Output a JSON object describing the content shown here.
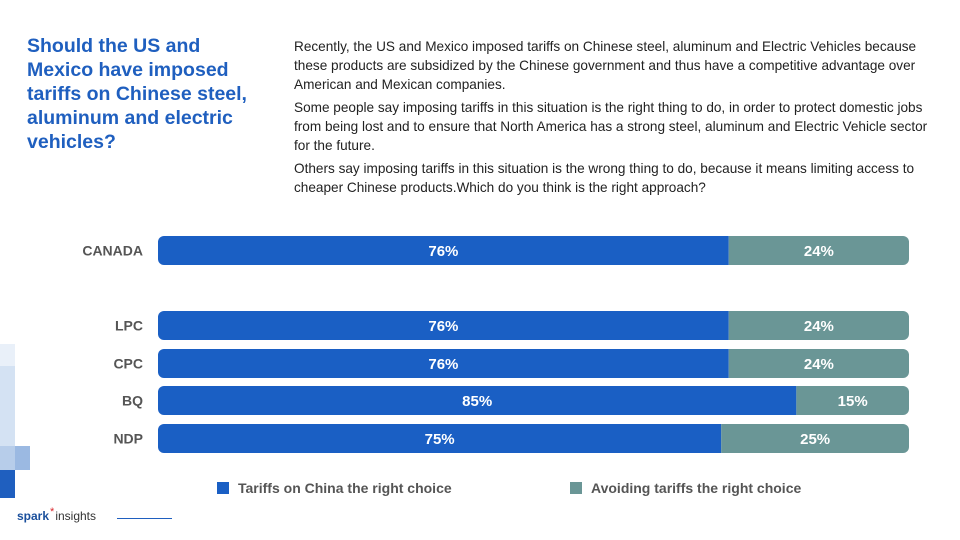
{
  "title": "Should the US and Mexico have imposed tariffs on Chinese steel, aluminum and electric vehicles?",
  "description": [
    "Recently, the US and Mexico imposed tariffs on Chinese steel, aluminum and Electric Vehicles because these products are subsidized by the Chinese government and thus have a competitive advantage over American and Mexican companies.",
    "Some people say imposing tariffs in this situation is the right thing to do, in order to protect domestic jobs from being lost and to ensure that North America has a strong steel, aluminum and Electric Vehicle sector for the future.",
    "Others say imposing tariffs in this situation is the wrong thing to do, because it means limiting access to cheaper Chinese products.Which do you think is the right approach?"
  ],
  "chart_data": {
    "type": "bar",
    "orientation": "horizontal",
    "stacked": true,
    "categories": [
      "CANADA",
      "LPC",
      "CPC",
      "BQ",
      "NDP"
    ],
    "series": [
      {
        "name": "Tariffs on China the right choice",
        "values": [
          76,
          76,
          76,
          85,
          75
        ],
        "color": "#1a5fc4"
      },
      {
        "name": "Avoiding tariffs the right choice",
        "values": [
          24,
          24,
          24,
          15,
          25
        ],
        "color": "#6a9696"
      }
    ],
    "value_suffix": "%",
    "xlim": [
      0,
      100
    ],
    "grid": false,
    "legend_position": "bottom"
  },
  "logo": {
    "brand": "spark",
    "star": "*",
    "suffix": "insights"
  }
}
